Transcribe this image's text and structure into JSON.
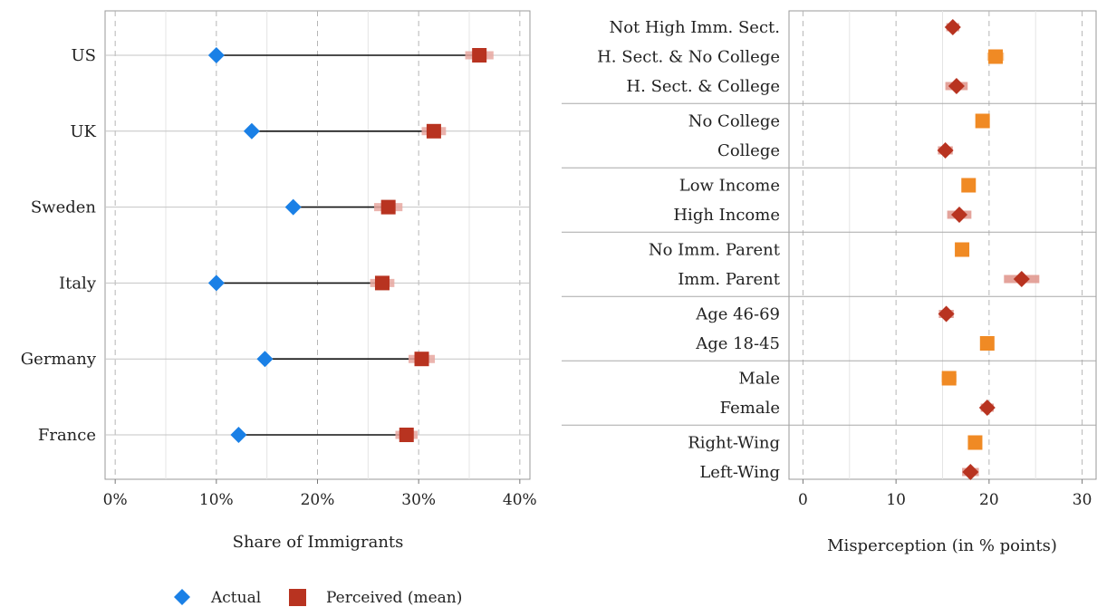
{
  "chart_data": [
    {
      "type": "dot-range",
      "xlabel": "Share of Immigrants",
      "xlim": [
        -1,
        41
      ],
      "x_ticks": [
        0,
        10,
        20,
        30,
        40
      ],
      "x_tick_labels": [
        "0%",
        "10%",
        "20%",
        "30%",
        "40%"
      ],
      "grid": true,
      "categories": [
        "US",
        "UK",
        "Sweden",
        "Italy",
        "Germany",
        "France"
      ],
      "series": [
        {
          "name": "Actual",
          "values": [
            10,
            13.5,
            17.6,
            10,
            14.8,
            12.2
          ],
          "color": "#1a80e6",
          "marker": "diamond"
        },
        {
          "name": "Perceived (mean)",
          "values": [
            36,
            31.5,
            27,
            26.4,
            30.3,
            28.8
          ],
          "ci_low": [
            34.6,
            30.3,
            25.6,
            25.2,
            29.0,
            27.7
          ],
          "ci_high": [
            37.4,
            32.7,
            28.4,
            27.6,
            31.6,
            29.9
          ],
          "color": "#b83320",
          "marker": "square"
        }
      ],
      "legend": {
        "position": "bottom",
        "items": [
          {
            "label": "Actual",
            "color": "#1a80e6",
            "marker": "diamond"
          },
          {
            "label": "Perceived (mean)",
            "color": "#b83320",
            "marker": "square"
          }
        ]
      }
    },
    {
      "type": "dot-ci",
      "xlabel": "Misperception (in % points)",
      "xlim": [
        -1.5,
        31.5
      ],
      "x_ticks": [
        0,
        10,
        20,
        30
      ],
      "x_tick_labels": [
        "0",
        "10",
        "20",
        "30"
      ],
      "grid": true,
      "groups": [
        {
          "items": [
            {
              "label": "Not High Imm. Sect.",
              "value": 16.1,
              "ci": [
                15.4,
                16.8
              ],
              "marker": "diamond",
              "color": "#b83320"
            },
            {
              "label": "H. Sect. & No College",
              "value": 20.7,
              "ci": [
                19.8,
                21.6
              ],
              "marker": "square",
              "color": "#f08a24"
            },
            {
              "label": "H. Sect. & College",
              "value": 16.5,
              "ci": [
                15.3,
                17.7
              ],
              "marker": "diamond",
              "color": "#b83320"
            }
          ]
        },
        {
          "items": [
            {
              "label": "No College",
              "value": 19.3,
              "ci": [
                18.7,
                19.9
              ],
              "marker": "square",
              "color": "#f08a24"
            },
            {
              "label": "College",
              "value": 15.3,
              "ci": [
                14.5,
                16.1
              ],
              "marker": "diamond",
              "color": "#b83320"
            }
          ]
        },
        {
          "items": [
            {
              "label": "Low Income",
              "value": 17.8,
              "ci": [
                17.2,
                18.4
              ],
              "marker": "square",
              "color": "#f08a24"
            },
            {
              "label": "High Income",
              "value": 16.8,
              "ci": [
                15.5,
                18.1
              ],
              "marker": "diamond",
              "color": "#b83320"
            }
          ]
        },
        {
          "items": [
            {
              "label": "No Imm. Parent",
              "value": 17.1,
              "ci": [
                16.6,
                17.6
              ],
              "marker": "square",
              "color": "#f08a24"
            },
            {
              "label": "Imm. Parent",
              "value": 23.5,
              "ci": [
                21.6,
                25.4
              ],
              "marker": "diamond",
              "color": "#b83320"
            }
          ]
        },
        {
          "items": [
            {
              "label": "Age 46-69",
              "value": 15.4,
              "ci": [
                14.6,
                16.2
              ],
              "marker": "diamond",
              "color": "#b83320"
            },
            {
              "label": "Age 18-45",
              "value": 19.8,
              "ci": [
                19.2,
                20.4
              ],
              "marker": "square",
              "color": "#f08a24"
            }
          ]
        },
        {
          "items": [
            {
              "label": "Male",
              "value": 15.7,
              "ci": [
                14.9,
                16.5
              ],
              "marker": "square",
              "color": "#f08a24"
            },
            {
              "label": "Female",
              "value": 19.8,
              "ci": [
                19.1,
                20.5
              ],
              "marker": "diamond",
              "color": "#b83320"
            }
          ]
        },
        {
          "items": [
            {
              "label": "Right-Wing",
              "value": 18.5,
              "ci": [
                17.8,
                19.2
              ],
              "marker": "square",
              "color": "#f08a24"
            },
            {
              "label": "Left-Wing",
              "value": 18.0,
              "ci": [
                17.1,
                18.9
              ],
              "marker": "diamond",
              "color": "#b83320"
            }
          ]
        }
      ]
    }
  ]
}
